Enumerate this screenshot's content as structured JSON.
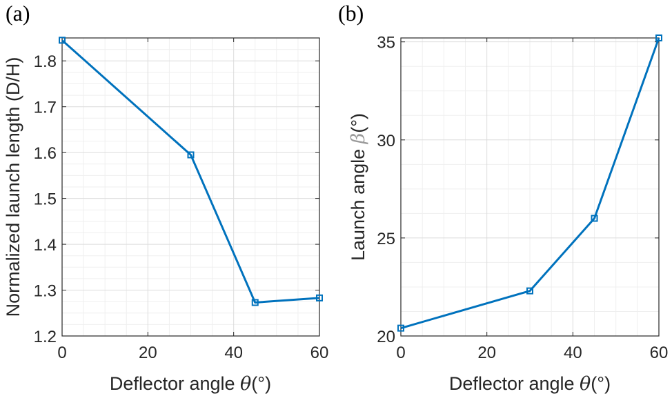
{
  "chart_data": [
    {
      "type": "line",
      "panel_label": "(a)",
      "x": [
        0,
        30,
        45,
        60
      ],
      "series": [
        {
          "name": "Normalized launch length",
          "values": [
            1.845,
            1.595,
            1.273,
            1.283
          ],
          "color": "#0072BD",
          "marker": "square"
        }
      ],
      "xlabel": {
        "prefix": "Deflector angle ",
        "symbol": "θ",
        "suffix": "(°)"
      },
      "ylabel": "Normalized launch length (D/H)",
      "xlim": [
        0,
        60
      ],
      "ylim": [
        1.2,
        1.85
      ],
      "xticks": [
        "0",
        "20",
        "40",
        "60"
      ],
      "yticks": [
        "1.2",
        "1.3",
        "1.4",
        "1.5",
        "1.6",
        "1.7",
        "1.8"
      ],
      "grid": true
    },
    {
      "type": "line",
      "panel_label": "(b)",
      "x": [
        0,
        30,
        45,
        60
      ],
      "series": [
        {
          "name": "Launch angle",
          "values": [
            20.4,
            22.3,
            26.0,
            35.2
          ],
          "color": "#0072BD",
          "marker": "square"
        }
      ],
      "xlabel": {
        "prefix": "Deflector angle ",
        "symbol": "θ",
        "suffix": "(°)"
      },
      "ylabel": {
        "prefix": "Launch angle ",
        "symbol": "β",
        "suffix": "(°)"
      },
      "xlim": [
        0,
        60
      ],
      "ylim": [
        20,
        35.2
      ],
      "xticks": [
        "0",
        "20",
        "40",
        "60"
      ],
      "yticks": [
        "20",
        "25",
        "30",
        "35"
      ],
      "grid": true
    }
  ]
}
